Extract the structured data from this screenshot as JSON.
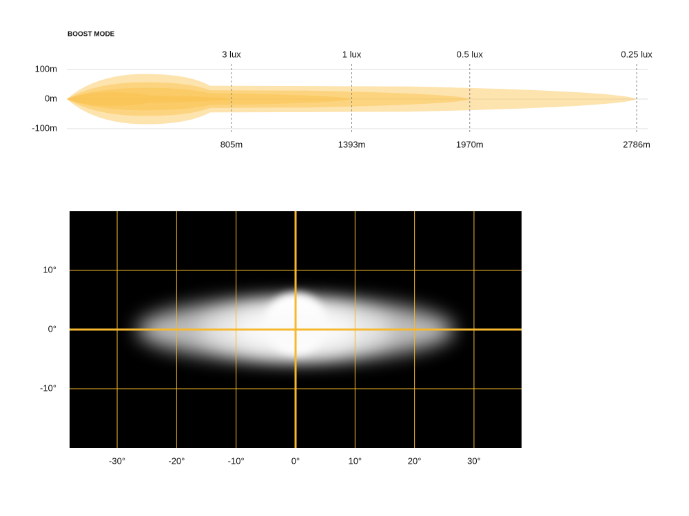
{
  "chart_data": [
    {
      "type": "beam",
      "title": "BOOST MODE",
      "xlim": [
        0,
        2786
      ],
      "ylim": [
        -100,
        100
      ],
      "xticks": [
        {
          "value": 805,
          "label": "805m"
        },
        {
          "value": 1393,
          "label": "1393m"
        },
        {
          "value": 1970,
          "label": "1970m"
        },
        {
          "value": 2786,
          "label": "2786m"
        }
      ],
      "yticks": [
        {
          "value": 100,
          "label": "100m"
        },
        {
          "value": 0,
          "label": "0m"
        },
        {
          "value": -100,
          "label": "-100m"
        }
      ],
      "color": "#fbc04a",
      "series": [
        {
          "name": "0.25 lux",
          "distance": 2786,
          "half_width": 45
        },
        {
          "name": "0.5 lux",
          "distance": 1970,
          "half_width": 30
        },
        {
          "name": "1 lux",
          "distance": 1393,
          "half_width": 20
        },
        {
          "name": "3 lux",
          "distance": 805,
          "half_width": 12
        }
      ]
    },
    {
      "type": "isolux",
      "xlim": [
        -38,
        38
      ],
      "ylim": [
        -20,
        20
      ],
      "xticks": [
        {
          "value": -30,
          "label": "-30°"
        },
        {
          "value": -20,
          "label": "-20°"
        },
        {
          "value": -10,
          "label": "-10°"
        },
        {
          "value": 0,
          "label": "0°"
        },
        {
          "value": 10,
          "label": "10°"
        },
        {
          "value": 20,
          "label": "20°"
        },
        {
          "value": 30,
          "label": "30°"
        }
      ],
      "yticks": [
        {
          "value": 10,
          "label": "10°"
        },
        {
          "value": 0,
          "label": "0°"
        },
        {
          "value": -10,
          "label": "-10°"
        }
      ],
      "color": "#f5b82e"
    }
  ]
}
